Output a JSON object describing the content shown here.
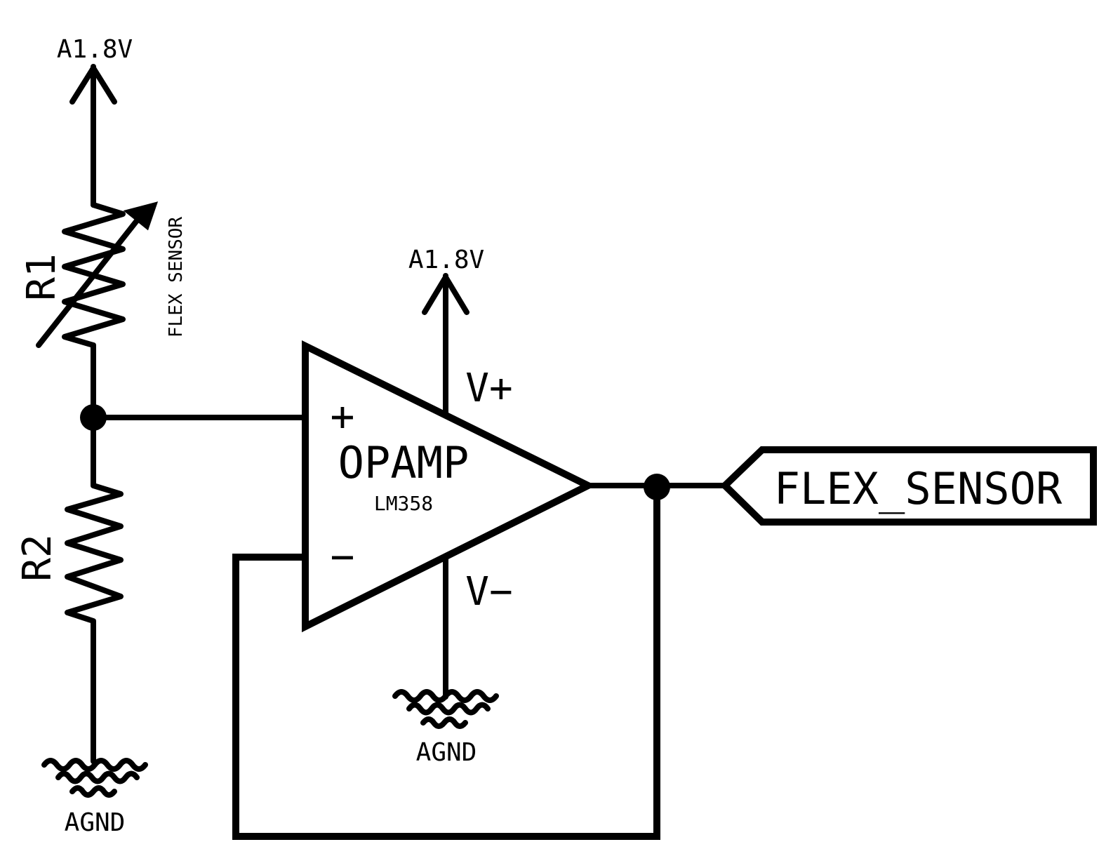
{
  "supplies": {
    "top_left": "A1.8V",
    "opamp": "A1.8V"
  },
  "grounds": {
    "left": "AGND",
    "opamp": "AGND"
  },
  "r1": {
    "designator": "R1",
    "value": "FLEX SENSOR"
  },
  "r2": {
    "designator": "R2"
  },
  "opamp": {
    "name": "OPAMP",
    "part": "LM358",
    "plus": "+",
    "minus": "−",
    "vplus": "V+",
    "vminus": "V−"
  },
  "net_label": "FLEX_SENSOR",
  "colors": {
    "line": "#000000",
    "background": "#ffffff"
  }
}
